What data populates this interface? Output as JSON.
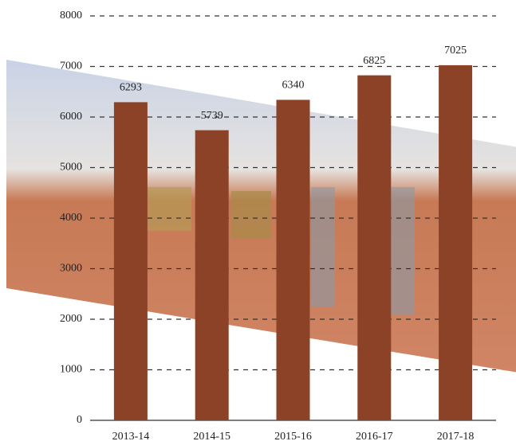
{
  "chart_data": {
    "type": "bar",
    "categories": [
      "2013-14",
      "2014-15",
      "2015-16",
      "2016-17",
      "2017-18"
    ],
    "values": [
      6293,
      5739,
      6340,
      6825,
      7025
    ],
    "color": "#8b4227",
    "ylim": [
      0,
      8000
    ],
    "yticks": [
      0,
      1000,
      2000,
      3000,
      4000,
      5000,
      6000,
      7000,
      8000
    ],
    "grid": true
  }
}
